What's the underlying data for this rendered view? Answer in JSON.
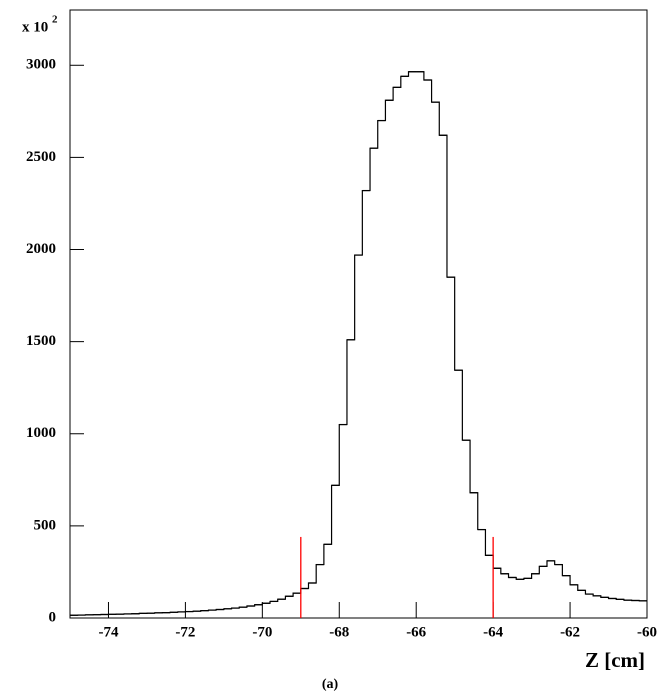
{
  "chart_data": {
    "type": "histogram",
    "y_multiplier": "x 10",
    "y_multiplier_exp": "2",
    "x_label": "Z [cm]",
    "caption": "(a)",
    "bins": [
      -75,
      -74.8,
      -74.6,
      -74.4,
      -74.2,
      -74,
      -73.8,
      -73.6,
      -73.4,
      -73.2,
      -73,
      -72.8,
      -72.6,
      -72.4,
      -72.2,
      -72,
      -71.8,
      -71.6,
      -71.4,
      -71.2,
      -71,
      -70.8,
      -70.6,
      -70.4,
      -70.2,
      -70,
      -69.8,
      -69.6,
      -69.4,
      -69.2,
      -69,
      -68.8,
      -68.6,
      -68.4,
      -68.2,
      -68,
      -67.8,
      -67.6,
      -67.4,
      -67.2,
      -67,
      -66.8,
      -66.6,
      -66.4,
      -66.2,
      -66,
      -65.8,
      -65.6,
      -65.4,
      -65.2,
      -65,
      -64.8,
      -64.6,
      -64.4,
      -64.2,
      -64,
      -63.8,
      -63.6,
      -63.4,
      -63.2,
      -63,
      -62.8,
      -62.6,
      -62.4,
      -62.2,
      -62,
      -61.8,
      -61.6,
      -61.4,
      -61.2,
      -61,
      -60.8,
      -60.6,
      -60.4,
      -60.2,
      -60
    ],
    "values": [
      15,
      16,
      17,
      18,
      19,
      20,
      21,
      22,
      23,
      25,
      26,
      28,
      29,
      31,
      33,
      35,
      37,
      40,
      43,
      46,
      50,
      54,
      59,
      65,
      72,
      80,
      90,
      102,
      118,
      135,
      160,
      190,
      290,
      400,
      720,
      1050,
      1510,
      1970,
      2320,
      2550,
      2700,
      2810,
      2880,
      2940,
      2965,
      2965,
      2920,
      2800,
      2620,
      1850,
      1345,
      965,
      680,
      480,
      340,
      270,
      240,
      220,
      210,
      215,
      240,
      280,
      310,
      290,
      230,
      180,
      150,
      130,
      120,
      112,
      106,
      101,
      97,
      95,
      93
    ],
    "color": "#000000",
    "cut_lines": {
      "x": [
        -69,
        -64
      ],
      "height": 440,
      "color": "#ff0000"
    },
    "xlim": [
      -75,
      -60
    ],
    "xticks": [
      -74,
      -72,
      -70,
      -68,
      -66,
      -64,
      -62,
      -60
    ],
    "ylim": [
      0,
      3300
    ],
    "yticks": [
      0,
      500,
      1000,
      1500,
      2000,
      2500,
      3000
    ]
  }
}
